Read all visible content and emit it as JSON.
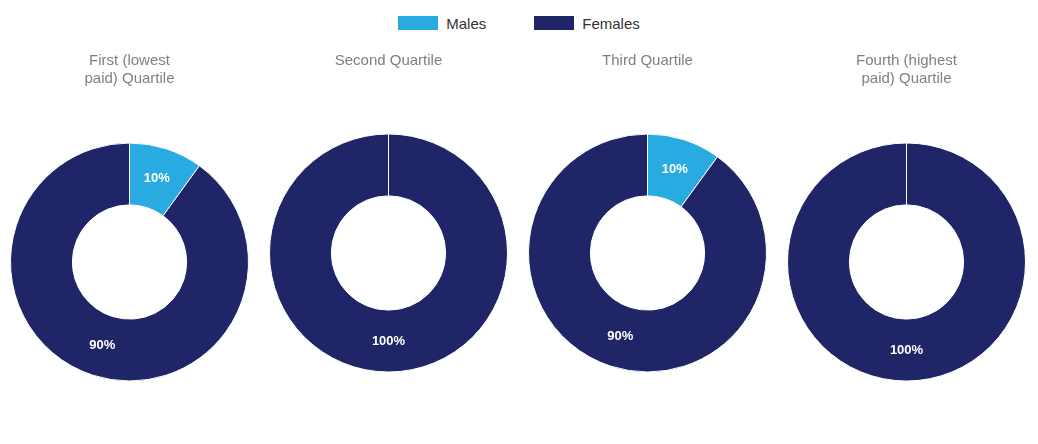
{
  "chart_data": [
    {
      "type": "doughnut",
      "title": "First (lowest\npaid) Quartile",
      "categories": [
        "Males",
        "Females"
      ],
      "values": [
        10,
        90
      ],
      "value_labels": [
        "10%",
        "90%"
      ],
      "colors": [
        "#29ABE2",
        "#1F2566"
      ],
      "data_labels": true,
      "legend": "top"
    },
    {
      "type": "doughnut",
      "title": "Second Quartile",
      "categories": [
        "Females"
      ],
      "values": [
        100
      ],
      "value_labels": [
        "100%"
      ],
      "colors": [
        "#1F2566"
      ],
      "data_labels": true
    },
    {
      "type": "doughnut",
      "title": "Third Quartile",
      "categories": [
        "Males",
        "Females"
      ],
      "values": [
        10,
        90
      ],
      "value_labels": [
        "10%",
        "90%"
      ],
      "colors": [
        "#29ABE2",
        "#1F2566"
      ],
      "data_labels": true
    },
    {
      "type": "doughnut",
      "title": "Fourth (highest\npaid) Quartile",
      "categories": [
        "Females"
      ],
      "values": [
        100
      ],
      "value_labels": [
        "100%"
      ],
      "colors": [
        "#1F2566"
      ],
      "data_labels": true
    }
  ]
}
